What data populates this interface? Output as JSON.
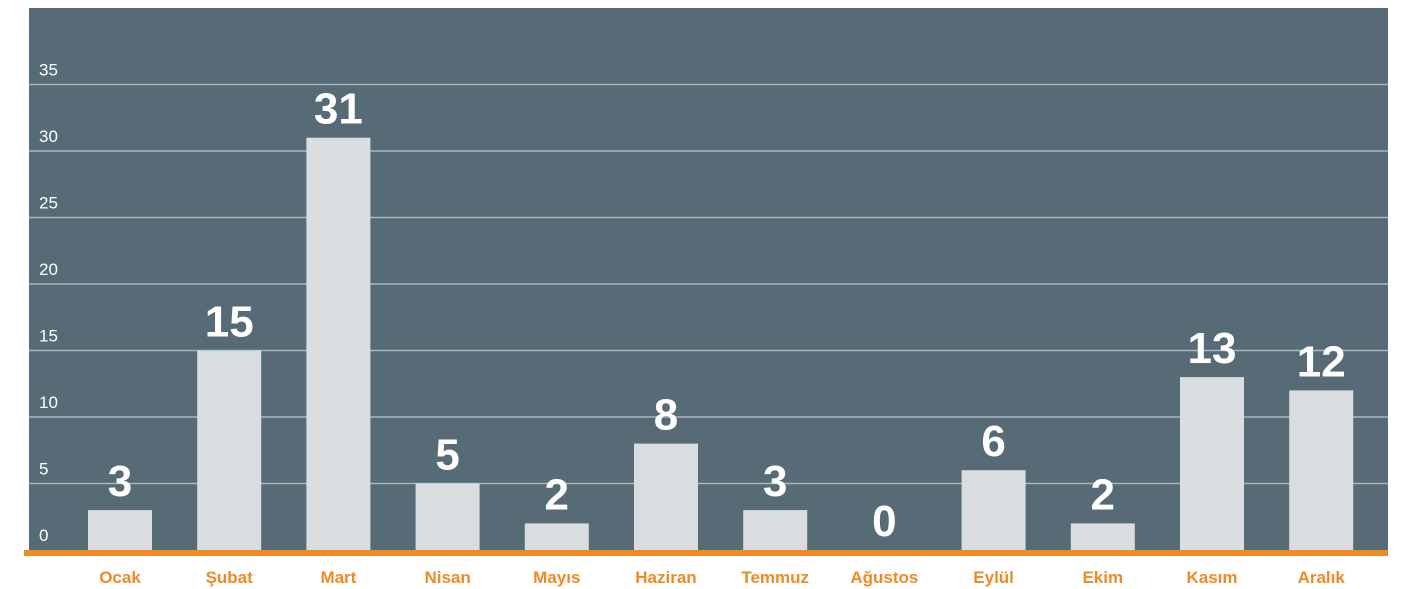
{
  "chart_data": {
    "type": "bar",
    "title": "",
    "xlabel": "",
    "ylabel": "",
    "categories": [
      "Ocak",
      "Şubat",
      "Mart",
      "Nisan",
      "Mayıs",
      "Haziran",
      "Temmuz",
      "Ağustos",
      "Eylül",
      "Ekim",
      "Kasım",
      "Aralık"
    ],
    "values": [
      3,
      15,
      31,
      5,
      2,
      8,
      3,
      0,
      6,
      2,
      13,
      12
    ],
    "ylim": [
      0,
      35
    ],
    "yticks": [
      "0",
      "5",
      "10",
      "15",
      "20",
      "25",
      "30",
      "35"
    ],
    "grid": true,
    "legend": "none",
    "colors": {
      "background": "#566b76",
      "bar": "#d9dde0",
      "gridline": "#a9b6be",
      "baseline": "#f08a24",
      "category_label": "#f08a24",
      "tick_label": "#ffffff",
      "data_label": "#ffffff"
    }
  }
}
